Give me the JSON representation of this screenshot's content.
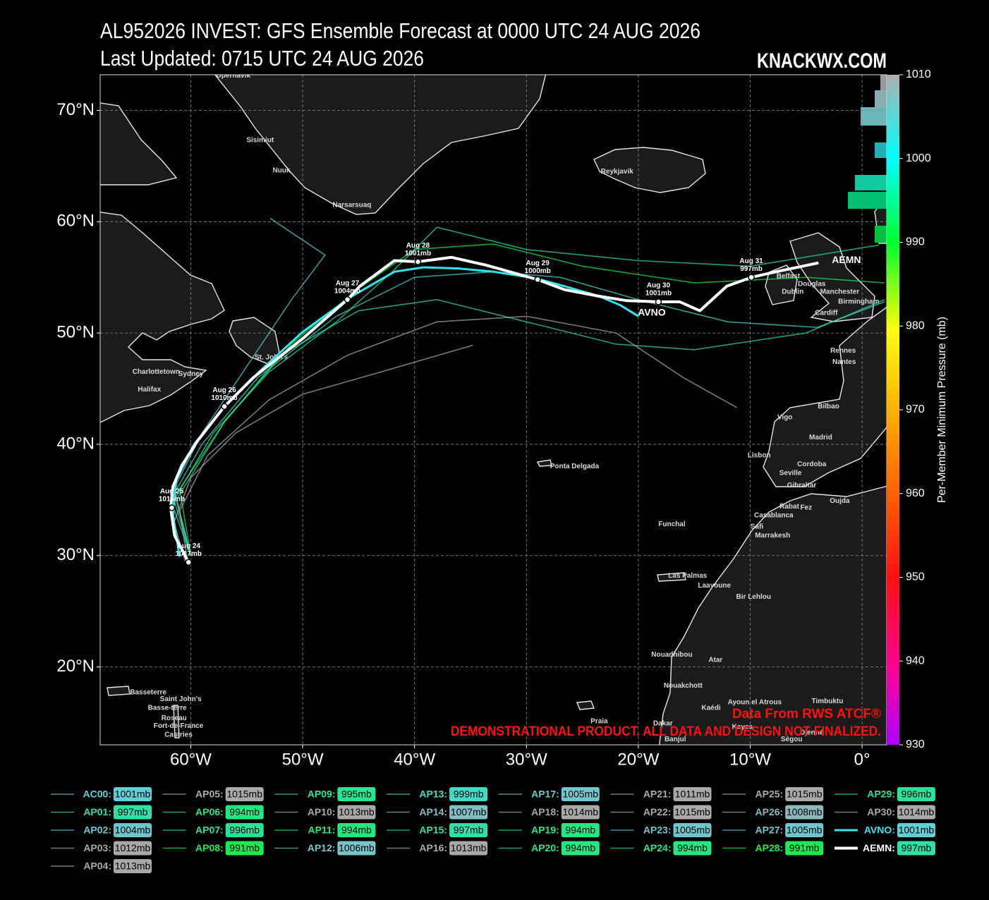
{
  "header": {
    "title": "AL952026 INVEST: GFS Ensemble Forecast at 0000 UTC 24 AUG 2026",
    "subtitle": "Last Updated: 0715 UTC 24 AUG 2026",
    "brand": "KNACKWX.COM"
  },
  "map": {
    "lon_range": [
      -68.1,
      2.2
    ],
    "lat_range": [
      13.0,
      73.2
    ],
    "lon_ticks": [
      {
        "value": -60,
        "label": "60°W"
      },
      {
        "value": -50,
        "label": "50°W"
      },
      {
        "value": -40,
        "label": "40°W"
      },
      {
        "value": -30,
        "label": "30°W"
      },
      {
        "value": -20,
        "label": "20°W"
      },
      {
        "value": -10,
        "label": "10°W"
      },
      {
        "value": 0,
        "label": "0°"
      }
    ],
    "lat_ticks": [
      {
        "value": 20,
        "label": "20°N"
      },
      {
        "value": 30,
        "label": "30°N"
      },
      {
        "value": 40,
        "label": "40°N"
      },
      {
        "value": 50,
        "label": "50°N"
      },
      {
        "value": 60,
        "label": "60°N"
      },
      {
        "value": 70,
        "label": "70°N"
      }
    ],
    "grid": true,
    "places": [
      {
        "name": "Upernavik",
        "lon": -56.2,
        "lat": 73.1
      },
      {
        "name": "Sisimiut",
        "lon": -53.8,
        "lat": 67.3
      },
      {
        "name": "Nuuk",
        "lon": -51.9,
        "lat": 64.6
      },
      {
        "name": "Narsarsuaq",
        "lon": -45.6,
        "lat": 61.5
      },
      {
        "name": "Reykjavik",
        "lon": -21.9,
        "lat": 64.5
      },
      {
        "name": "St. John's",
        "lon": -52.8,
        "lat": 47.8
      },
      {
        "name": "Charlottetown",
        "lon": -63.1,
        "lat": 46.5
      },
      {
        "name": "Sydney",
        "lon": -60.0,
        "lat": 46.3
      },
      {
        "name": "Halifax",
        "lon": -63.7,
        "lat": 44.9
      },
      {
        "name": "Ponta Delgada",
        "lon": -25.7,
        "lat": 38.0
      },
      {
        "name": "Funchal",
        "lon": -17.0,
        "lat": 32.8
      },
      {
        "name": "Las Palmas",
        "lon": -15.6,
        "lat": 28.2
      },
      {
        "name": "Laayoune",
        "lon": -13.2,
        "lat": 27.3
      },
      {
        "name": "Bir Lehlou",
        "lon": -9.7,
        "lat": 26.3
      },
      {
        "name": "Nouadhibou",
        "lon": -17.0,
        "lat": 21.1
      },
      {
        "name": "Atar",
        "lon": -13.1,
        "lat": 20.6
      },
      {
        "name": "Nouakchott",
        "lon": -16.0,
        "lat": 18.3
      },
      {
        "name": "Kaédi",
        "lon": -13.5,
        "lat": 16.3
      },
      {
        "name": "Ayoun el Atrous",
        "lon": -9.6,
        "lat": 16.8
      },
      {
        "name": "Timbuktu",
        "lon": -3.1,
        "lat": 16.9
      },
      {
        "name": "Praia",
        "lon": -23.5,
        "lat": 15.1
      },
      {
        "name": "Dakar",
        "lon": -17.8,
        "lat": 14.9
      },
      {
        "name": "Kayes",
        "lon": -10.7,
        "lat": 14.6
      },
      {
        "name": "Banjul",
        "lon": -16.7,
        "lat": 13.5
      },
      {
        "name": "Ségou",
        "lon": -6.3,
        "lat": 13.5
      },
      {
        "name": "Djenné",
        "lon": -4.5,
        "lat": 14.1
      },
      {
        "name": "Basseterre",
        "lon": -63.8,
        "lat": 17.7
      },
      {
        "name": "Saint John's",
        "lon": -60.9,
        "lat": 17.1
      },
      {
        "name": "Basse-terre",
        "lon": -62.1,
        "lat": 16.3
      },
      {
        "name": "Roseau",
        "lon": -61.5,
        "lat": 15.4
      },
      {
        "name": "Fort-de-France",
        "lon": -61.1,
        "lat": 14.7
      },
      {
        "name": "Castries",
        "lon": -61.1,
        "lat": 13.9
      },
      {
        "name": "Belfast",
        "lon": -6.6,
        "lat": 55.1
      },
      {
        "name": "Douglas",
        "lon": -4.5,
        "lat": 54.4
      },
      {
        "name": "Dublin",
        "lon": -6.2,
        "lat": 53.7
      },
      {
        "name": "Manchester",
        "lon": -2.0,
        "lat": 53.7
      },
      {
        "name": "Birmingham",
        "lon": -0.3,
        "lat": 52.8
      },
      {
        "name": "Cardiff",
        "lon": -3.2,
        "lat": 51.8
      },
      {
        "name": "Rennes",
        "lon": -1.7,
        "lat": 48.4
      },
      {
        "name": "Nantes",
        "lon": -1.6,
        "lat": 47.4
      },
      {
        "name": "Bilbao",
        "lon": -3.0,
        "lat": 43.4
      },
      {
        "name": "Vigo",
        "lon": -6.9,
        "lat": 42.4
      },
      {
        "name": "Madrid",
        "lon": -3.7,
        "lat": 40.6
      },
      {
        "name": "Lisbon",
        "lon": -9.2,
        "lat": 39.0
      },
      {
        "name": "Cordoba",
        "lon": -4.5,
        "lat": 38.2
      },
      {
        "name": "Seville",
        "lon": -6.4,
        "lat": 37.4
      },
      {
        "name": "Gibraltar",
        "lon": -5.4,
        "lat": 36.3
      },
      {
        "name": "Rabat",
        "lon": -6.5,
        "lat": 34.4
      },
      {
        "name": "Fez",
        "lon": -5.0,
        "lat": 34.3
      },
      {
        "name": "Oujda",
        "lon": -2.0,
        "lat": 34.9
      },
      {
        "name": "Casablanca",
        "lon": -7.9,
        "lat": 33.6
      },
      {
        "name": "Safi",
        "lon": -9.4,
        "lat": 32.6
      },
      {
        "name": "Marrakesh",
        "lon": -8.0,
        "lat": 31.8
      }
    ],
    "fixes": [
      {
        "date": "Aug 24",
        "pressure": "1017mb",
        "lon": -60.2,
        "lat": 29.4
      },
      {
        "date": "Aug 25",
        "pressure": "1015mb",
        "lon": -61.7,
        "lat": 34.3
      },
      {
        "date": "Aug 26",
        "pressure": "1010mb",
        "lon": -57.0,
        "lat": 43.4
      },
      {
        "date": "Aug 27",
        "pressure": "1004mb",
        "lon": -46.0,
        "lat": 53.0
      },
      {
        "date": "Aug 28",
        "pressure": "1001mb",
        "lon": -39.7,
        "lat": 56.4
      },
      {
        "date": "Aug 29",
        "pressure": "1000mb",
        "lon": -29.0,
        "lat": 54.8
      },
      {
        "date": "Aug 30",
        "pressure": "1001mb",
        "lon": -18.2,
        "lat": 52.8
      },
      {
        "date": "Aug 31",
        "pressure": "997mb",
        "lon": -9.9,
        "lat": 55.0
      }
    ],
    "track_labels": [
      {
        "text": "AVNO",
        "lon": -18.8,
        "lat": 51.8
      },
      {
        "text": "AEMN",
        "lon": -1.4,
        "lat": 56.5
      }
    ],
    "annotations": [
      "Data From RWS ATCF®",
      "DEMONSTRATIONAL PRODUCT. ALL DATA AND DESIGN NOT FINALIZED."
    ]
  },
  "colorbar": {
    "label": "Per-Member Minimum Pressure (mb)",
    "range": [
      930,
      1010
    ],
    "ticks": [
      930,
      940,
      950,
      960,
      970,
      980,
      990,
      1000,
      1010
    ]
  },
  "legend": {
    "items": [
      {
        "name": "AC00:",
        "pressure": "1001mb",
        "color": "#5fd0d6"
      },
      {
        "name": "AP01:",
        "pressure": "997mb",
        "color": "#2ee0a8",
        "track": {
          "lon": [
            -60,
            -61.3,
            -57,
            -52,
            -45,
            -38,
            -30,
            -22,
            -15,
            -5,
            2
          ],
          "lat": [
            30,
            35,
            42,
            48,
            52,
            53,
            51,
            49,
            48.5,
            50,
            53
          ]
        }
      },
      {
        "name": "AP02:",
        "pressure": "1004mb",
        "color": "#6cc8ce",
        "track": {
          "lon": [
            -60,
            -61.5,
            -59,
            -55,
            -51,
            -48,
            -52.9
          ],
          "lat": [
            30,
            36,
            41,
            47,
            53,
            57,
            60.3
          ]
        }
      },
      {
        "name": "AP03:",
        "pressure": "1012mb",
        "color": "#a8a8a8",
        "track": {
          "lon": [
            -60.5,
            -61.5,
            -60,
            -56,
            -50,
            -43,
            -34.8
          ],
          "lat": [
            29.5,
            33,
            37,
            41,
            44.5,
            46.5,
            48.9
          ]
        }
      },
      {
        "name": "AP04:",
        "pressure": "1013mb",
        "color": "#a8a8a8"
      },
      {
        "name": "AP05:",
        "pressure": "1015mb",
        "color": "#aaaaaa"
      },
      {
        "name": "AP06:",
        "pressure": "994mb",
        "color": "#22e882"
      },
      {
        "name": "AP07:",
        "pressure": "996mb",
        "color": "#28e29c"
      },
      {
        "name": "AP08:",
        "pressure": "991mb",
        "color": "#16ee50",
        "track": {
          "lon": [
            -60,
            -61,
            -57,
            -51,
            -45,
            -40,
            -33,
            -25,
            -15,
            -5,
            2
          ],
          "lat": [
            30,
            36,
            42,
            49,
            54,
            57.5,
            58,
            56,
            54.5,
            55,
            54.5
          ]
        }
      },
      {
        "name": "AP09:",
        "pressure": "995mb",
        "color": "#24e690"
      },
      {
        "name": "AP10:",
        "pressure": "1013mb",
        "color": "#a8a8a8",
        "track": {
          "lon": [
            -60.3,
            -61,
            -58.5,
            -53,
            -46,
            -38,
            -30,
            -22,
            -16,
            -11.2
          ],
          "lat": [
            29.6,
            34,
            39,
            44,
            48,
            51,
            51.5,
            50,
            46,
            43.3
          ]
        }
      },
      {
        "name": "AP11:",
        "pressure": "994mb",
        "color": "#22e882"
      },
      {
        "name": "AP12:",
        "pressure": "1006mb",
        "color": "#78c2c8"
      },
      {
        "name": "AP13:",
        "pressure": "999mb",
        "color": "#40dcc8",
        "track": {
          "lon": [
            -60,
            -61.8,
            -59,
            -54,
            -47,
            -40,
            -33,
            -27,
            -20,
            -12,
            -4,
            2
          ],
          "lat": [
            30,
            35,
            40,
            46,
            51.5,
            55,
            55.5,
            55,
            53,
            51,
            50.5,
            52.8
          ]
        }
      },
      {
        "name": "AP14:",
        "pressure": "1007mb",
        "color": "#82bec2"
      },
      {
        "name": "AP15:",
        "pressure": "997mb",
        "color": "#2ee0a8"
      },
      {
        "name": "AP16:",
        "pressure": "1013mb",
        "color": "#a8a8a8"
      },
      {
        "name": "AP17:",
        "pressure": "1005mb",
        "color": "#70c6cc"
      },
      {
        "name": "AP18:",
        "pressure": "1014mb",
        "color": "#a8a8a8"
      },
      {
        "name": "AP19:",
        "pressure": "994mb",
        "color": "#22e882"
      },
      {
        "name": "AP20:",
        "pressure": "994mb",
        "color": "#22e882"
      },
      {
        "name": "AP21:",
        "pressure": "1011mb",
        "color": "#a8a8a8"
      },
      {
        "name": "AP22:",
        "pressure": "1015mb",
        "color": "#aaaaaa"
      },
      {
        "name": "AP23:",
        "pressure": "1005mb",
        "color": "#70c6cc"
      },
      {
        "name": "AP24:",
        "pressure": "994mb",
        "color": "#22e882"
      },
      {
        "name": "AP25:",
        "pressure": "1015mb",
        "color": "#aaaaaa"
      },
      {
        "name": "AP26:",
        "pressure": "1008mb",
        "color": "#8cb8bc"
      },
      {
        "name": "AP27:",
        "pressure": "1005mb",
        "color": "#70c6cc"
      },
      {
        "name": "AP28:",
        "pressure": "991mb",
        "color": "#16ee50"
      },
      {
        "name": "AP29:",
        "pressure": "996mb",
        "color": "#28e29c",
        "track": {
          "lon": [
            -60,
            -61.5,
            -58,
            -53,
            -47,
            -42,
            -38,
            -30,
            -20,
            -10,
            1.5
          ],
          "lat": [
            30,
            35,
            41,
            46.5,
            51,
            55.5,
            59.5,
            57.5,
            56.5,
            56,
            57.9
          ]
        }
      },
      {
        "name": "AP30:",
        "pressure": "1014mb",
        "color": "#a8a8a8"
      },
      {
        "name": "AVNO:",
        "pressure": "1001mb",
        "color": "#5fd0d6",
        "line_color": "#2ee6ea",
        "line_width": 3,
        "track": {
          "lon": [
            -61.0,
            -61.6,
            -61.3,
            -59.7,
            -56.9,
            -53.8,
            -50.0,
            -45.6,
            -41.8,
            -39.2,
            -36.1,
            -32.9,
            -29.1,
            -26.6,
            -23.5,
            -21.6,
            -20.0
          ],
          "lat": [
            29.9,
            33.7,
            36.8,
            40.0,
            43.5,
            46.6,
            50.1,
            53.3,
            55.5,
            55.9,
            55.8,
            55.5,
            54.9,
            54.2,
            53.3,
            52.5,
            51.5
          ]
        }
      },
      {
        "name": "AEMN:",
        "pressure": "997mb",
        "color": "#2ee0a8",
        "line_color": "#ffffff",
        "line_width": 4,
        "track": {
          "lon": [
            -60.2,
            -61.45,
            -61.8,
            -61.6,
            -60.8,
            -59.4,
            -57.0,
            -54.4,
            -50.0,
            -46.0,
            -44.9,
            -41.8,
            -39.7,
            -36.7,
            -33.6,
            -29.0,
            -26.6,
            -23.5,
            -21.0,
            -18.2,
            -16.3,
            -14.5,
            -12.1,
            -9.9,
            -7.7,
            -3.9
          ],
          "lat": [
            29.4,
            31.8,
            34.3,
            36.2,
            38.1,
            40.3,
            43.4,
            46.0,
            49.5,
            53.0,
            54.2,
            56.5,
            56.4,
            56.8,
            56.1,
            54.8,
            53.9,
            53.3,
            52.9,
            52.8,
            52.8,
            52.0,
            54.2,
            55.0,
            55.5,
            56.3
          ]
        }
      }
    ]
  }
}
